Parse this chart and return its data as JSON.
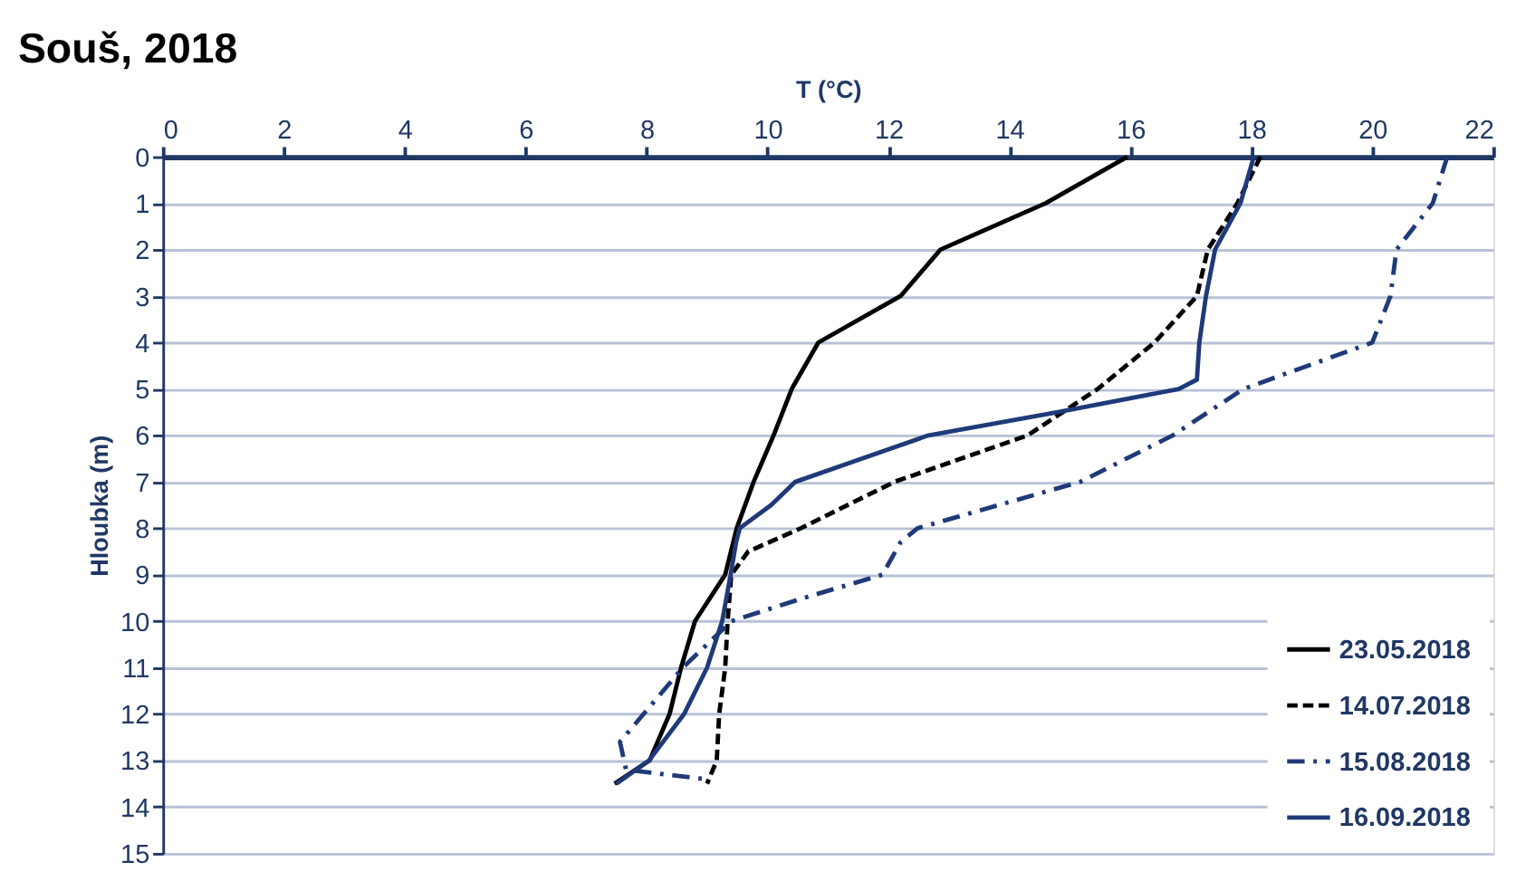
{
  "chart_data": {
    "type": "line",
    "title": "Souš, 2018",
    "xlabel": "T (°C)",
    "ylabel": "Hloubka (m)",
    "xlim": [
      0,
      22
    ],
    "xticks": [
      0,
      2,
      4,
      6,
      8,
      10,
      12,
      14,
      16,
      18,
      20,
      22
    ],
    "ylim": [
      15,
      0
    ],
    "yticks": [
      0,
      1,
      2,
      3,
      4,
      5,
      6,
      7,
      8,
      9,
      10,
      11,
      12,
      13,
      14,
      15
    ],
    "grid": "y",
    "legend": "bottom right",
    "marker": "none",
    "series": [
      {
        "name": "23.05.2018",
        "color": "#000000",
        "line_style": "solid",
        "x": [
          15.95,
          14.6,
          12.86,
          12.2,
          10.84,
          10.4,
          10.1,
          9.77,
          9.49,
          9.3,
          8.8,
          8.57,
          8.38,
          8.05,
          7.47
        ],
        "values": [
          0,
          1,
          2,
          3,
          4,
          5,
          6,
          7,
          8,
          9,
          10,
          11,
          12,
          13,
          13.5
        ]
      },
      {
        "name": "14.07.2018",
        "color": "#000000",
        "line_style": "dashed",
        "x": [
          18.15,
          17.77,
          17.28,
          17.1,
          16.4,
          15.46,
          14.3,
          12.1,
          10.55,
          9.68,
          9.4,
          9.34,
          9.3,
          9.2,
          9.16,
          9.0
        ],
        "values": [
          0,
          1,
          2,
          3,
          4,
          5,
          6,
          7,
          8,
          8.5,
          9,
          10,
          11,
          12,
          13,
          13.5
        ]
      },
      {
        "name": "15.08.2018",
        "color": "#1f3a78",
        "line_style": "dashdot",
        "x": [
          21.24,
          21.0,
          20.4,
          20.3,
          20.0,
          17.87,
          16.7,
          15.17,
          12.48,
          12.2,
          11.9,
          10.6,
          9.4,
          8.6,
          7.95,
          7.56,
          7.66,
          8.96
        ],
        "values": [
          0,
          1,
          2,
          3,
          4,
          5,
          6,
          7,
          8,
          8.3,
          9,
          9.5,
          10,
          11,
          12,
          12.6,
          13.2,
          13.4
        ]
      },
      {
        "name": "16.09.2018",
        "color": "#1f3a78",
        "line_style": "solid",
        "x": [
          18.04,
          17.82,
          17.4,
          17.25,
          17.14,
          17.1,
          16.8,
          14.8,
          12.66,
          10.46,
          10.06,
          9.54,
          9.48,
          9.39,
          9.25,
          9.0,
          8.62,
          8.04,
          7.5
        ],
        "values": [
          0,
          1,
          2,
          3,
          4,
          4.8,
          5,
          5.5,
          6,
          7,
          7.5,
          8,
          8.3,
          9,
          10,
          11,
          12,
          13,
          13.5
        ]
      }
    ]
  }
}
